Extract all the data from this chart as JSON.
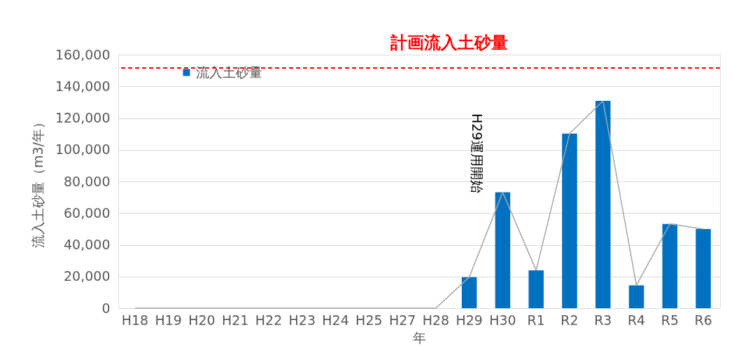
{
  "chart_data": {
    "type": "bar",
    "xlabel": "年",
    "ylabel": "流入土砂量（m3/年）",
    "categories": [
      "H18",
      "H19",
      "H20",
      "H21",
      "H22",
      "H23",
      "H24",
      "H25",
      "H27",
      "H28",
      "H29",
      "H30",
      "R1",
      "R2",
      "R3",
      "R4",
      "R5",
      "R6"
    ],
    "series": [
      {
        "name": "流入土砂量",
        "color": "#0070c0",
        "values": [
          0,
          0,
          0,
          0,
          0,
          0,
          0,
          0,
          0,
          0,
          19600,
          73100,
          23900,
          110200,
          130800,
          14400,
          53200,
          49900
        ]
      },
      {
        "type": "line",
        "color": "#a5a5a5",
        "values": [
          0,
          0,
          0,
          0,
          0,
          0,
          0,
          0,
          0,
          0,
          19600,
          73100,
          23900,
          110200,
          130800,
          14400,
          53200,
          49900
        ]
      }
    ],
    "ylim": [
      0,
      160000
    ],
    "yticks": [
      0,
      {
        "value": 20000,
        "label": "20,000"
      },
      {
        "value": 40000,
        "label": "40,000"
      },
      {
        "value": 60000,
        "label": "60,000"
      },
      {
        "value": 80000,
        "label": "80,000"
      },
      {
        "value": 100000,
        "label": "100,000"
      },
      {
        "value": 120000,
        "label": "120,000"
      },
      {
        "value": 140000,
        "label": "140,000"
      },
      {
        "value": 160000,
        "label": "160,000"
      }
    ],
    "grid": "y",
    "legend": "top left",
    "marker": "none",
    "ref_lines": [
      {
        "axis": "y",
        "value": 151600,
        "label": "計画流入土砂量",
        "color": "#ff0000",
        "line_style": "dashed"
      }
    ],
    "annotations": [
      "H29運用開始"
    ]
  }
}
